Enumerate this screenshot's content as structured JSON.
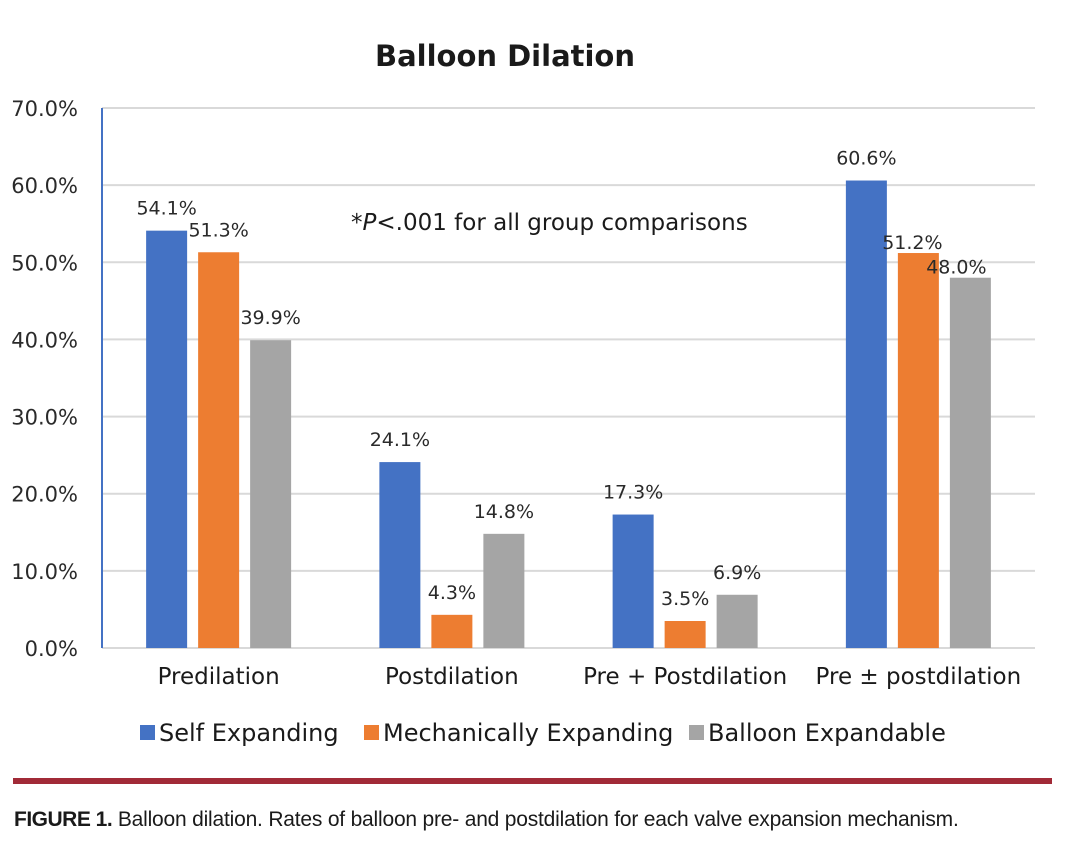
{
  "chart_data": {
    "type": "bar",
    "title": "Balloon Dilation",
    "xlabel": "",
    "ylabel": "",
    "ylim": [
      0,
      70
    ],
    "yticks": [
      0,
      10,
      20,
      30,
      40,
      50,
      60,
      70
    ],
    "ytick_labels": [
      "0.0%",
      "10.0%",
      "20.0%",
      "30.0%",
      "40.0%",
      "50.0%",
      "60.0%",
      "70.0%"
    ],
    "grid": true,
    "legend_position": "bottom",
    "categories": [
      "Predilation",
      "Postdilation",
      "Pre + Postdilation",
      "Pre ± postdilation"
    ],
    "series": [
      {
        "name": "Self Expanding",
        "color": "#4472c4",
        "values": [
          54.1,
          24.1,
          17.3,
          60.6
        ],
        "labels": [
          "54.1%",
          "24.1%",
          "17.3%",
          "60.6%"
        ]
      },
      {
        "name": "Mechanically Expanding",
        "color": "#ed7d31",
        "values": [
          51.3,
          4.3,
          3.5,
          51.2
        ],
        "labels": [
          "51.3%",
          "4.3%",
          "3.5%",
          "51.2%"
        ]
      },
      {
        "name": "Balloon Expandable",
        "color": "#a5a5a5",
        "values": [
          39.9,
          14.8,
          6.9,
          48.0
        ],
        "labels": [
          "39.9%",
          "14.8%",
          "6.9%",
          "48.0%"
        ]
      }
    ],
    "annotation": {
      "prefix": "*",
      "italic": "P",
      "suffix": "<.001 for all group comparisons"
    }
  },
  "caption": {
    "label": "FIGURE 1.",
    "text": " Balloon dilation. Rates of balloon pre- and postdilation for each valve expansion mechanism."
  },
  "colors": {
    "rule": "#a12a37",
    "axis": "#4472c4",
    "grid": "#d9d9d9"
  }
}
